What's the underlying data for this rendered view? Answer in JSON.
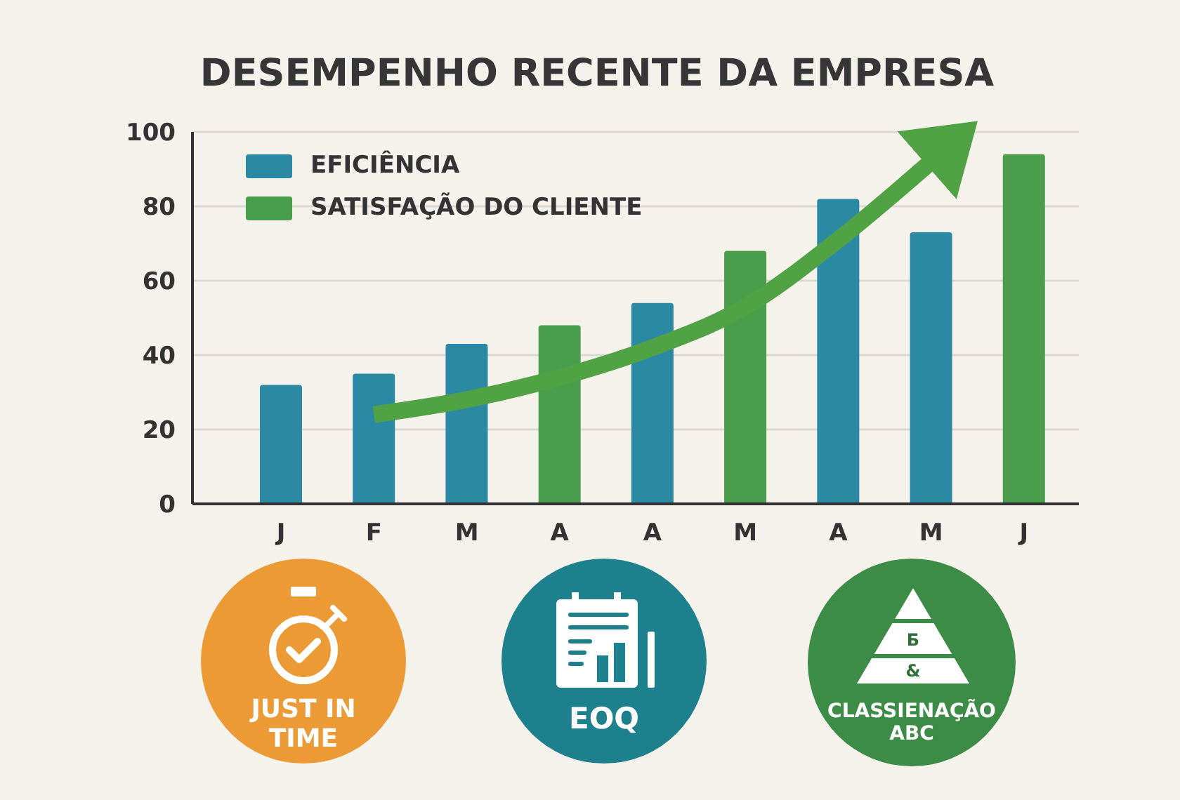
{
  "chart_data": {
    "type": "bar",
    "title": "DESEMPENHO RECENTE DA EMPRESA",
    "categories": [
      "J",
      "F",
      "M",
      "A",
      "A",
      "M",
      "A",
      "M",
      "J"
    ],
    "series": [
      {
        "name": "EFICIÊNCIA",
        "color": "#2c89a4",
        "values": [
          32,
          35,
          43,
          null,
          54,
          null,
          82,
          73,
          null
        ]
      },
      {
        "name": "SATISFAÇÃO DO CLIENTE",
        "color": "#4a9d4a",
        "values": [
          null,
          null,
          null,
          48,
          null,
          68,
          null,
          null,
          94
        ]
      },
      {
        "type": "line",
        "color": "#50a244",
        "values": [
          null,
          24,
          28,
          34,
          42,
          53,
          71,
          92,
          null
        ]
      }
    ],
    "stacked": true,
    "ylim": [
      0,
      100
    ],
    "yticks": [
      0,
      20,
      40,
      60,
      80,
      100
    ],
    "grid": "y",
    "legend": "top left",
    "annotations": [
      "JUST IN TIME",
      "EOQ",
      "CLASSIENAÇÃO ABC",
      "Б",
      "&"
    ]
  }
}
